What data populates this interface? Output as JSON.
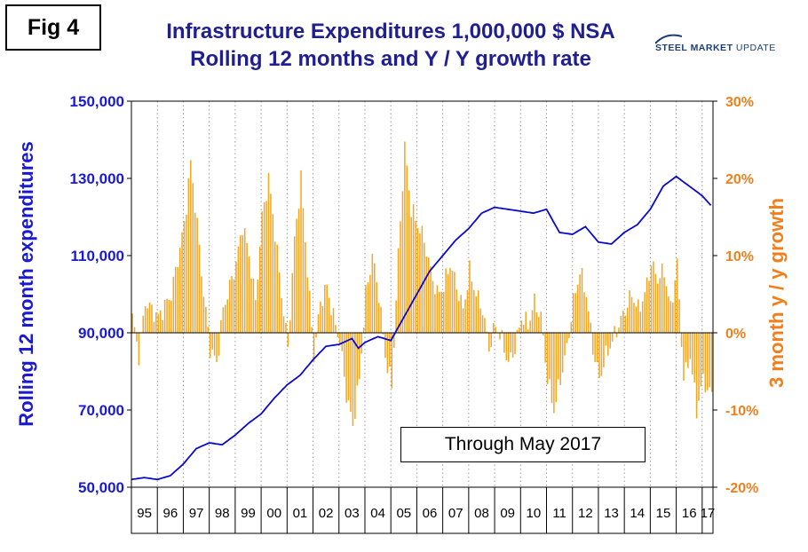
{
  "figure_label": "Fig 4",
  "title_line1": "Infrastructure Expenditures 1,000,000 $ NSA",
  "title_line2": "Rolling 12 months and Y / Y growth rate",
  "logo": {
    "word1": "STEEL MARKET",
    "word2": "UPDATE"
  },
  "annotation": "Through May 2017",
  "colors": {
    "line": "#0a0acc",
    "bars": "#f5a623",
    "left_axis": "#1a1ad0",
    "right_axis": "#f07f1d",
    "title": "#1f1f8f"
  },
  "chart_data": {
    "type": "line+bar",
    "left_axis": {
      "label": "Rolling 12 month expenditures",
      "ylim": [
        50000,
        150000
      ],
      "ticks": [
        "50,000",
        "70,000",
        "90,000",
        "110,000",
        "130,000",
        "150,000"
      ]
    },
    "right_axis": {
      "label": "3 month y / y growth",
      "ylim": [
        -20,
        30
      ],
      "ticks": [
        "-20%",
        "-10%",
        "0%",
        "10%",
        "20%",
        "30%"
      ]
    },
    "x_axis": {
      "categories": [
        "95",
        "96",
        "97",
        "98",
        "99",
        "00",
        "01",
        "02",
        "03",
        "04",
        "05",
        "06",
        "07",
        "08",
        "09",
        "10",
        "11",
        "12",
        "13",
        "14",
        "15",
        "16",
        "17"
      ],
      "start": "1995-01",
      "end": "2017-05"
    },
    "grid": "vertical dotted",
    "line_series": {
      "name": "Rolling 12 month expenditures",
      "points": [
        [
          1995.0,
          52000
        ],
        [
          1995.5,
          52500
        ],
        [
          1996.0,
          52000
        ],
        [
          1996.5,
          53000
        ],
        [
          1997.0,
          56000
        ],
        [
          1997.5,
          60000
        ],
        [
          1998.0,
          61500
        ],
        [
          1998.5,
          61000
        ],
        [
          1999.0,
          63500
        ],
        [
          1999.5,
          66500
        ],
        [
          2000.0,
          69000
        ],
        [
          2000.5,
          73000
        ],
        [
          2001.0,
          76500
        ],
        [
          2001.5,
          79000
        ],
        [
          2002.0,
          83000
        ],
        [
          2002.5,
          86500
        ],
        [
          2003.0,
          87000
        ],
        [
          2003.5,
          88500
        ],
        [
          2003.75,
          86000
        ],
        [
          2004.0,
          87500
        ],
        [
          2004.5,
          89000
        ],
        [
          2005.0,
          88000
        ],
        [
          2005.5,
          94000
        ],
        [
          2006.0,
          100000
        ],
        [
          2006.5,
          106000
        ],
        [
          2007.0,
          110000
        ],
        [
          2007.5,
          114000
        ],
        [
          2008.0,
          117000
        ],
        [
          2008.5,
          121000
        ],
        [
          2009.0,
          122500
        ],
        [
          2009.5,
          122000
        ],
        [
          2010.0,
          121500
        ],
        [
          2010.5,
          121000
        ],
        [
          2011.0,
          122000
        ],
        [
          2011.5,
          116000
        ],
        [
          2012.0,
          115500
        ],
        [
          2012.5,
          117500
        ],
        [
          2013.0,
          113500
        ],
        [
          2013.5,
          113000
        ],
        [
          2014.0,
          116000
        ],
        [
          2014.5,
          118000
        ],
        [
          2015.0,
          122000
        ],
        [
          2015.5,
          128000
        ],
        [
          2016.0,
          130500
        ],
        [
          2016.5,
          128000
        ],
        [
          2017.0,
          125500
        ],
        [
          2017.4,
          122500
        ]
      ]
    },
    "bar_series": {
      "name": "3 month y / y growth",
      "points": [
        [
          1995.0,
          2
        ],
        [
          1995.25,
          -3
        ],
        [
          1995.5,
          4
        ],
        [
          1996.0,
          2
        ],
        [
          1996.5,
          5
        ],
        [
          1997.0,
          14
        ],
        [
          1997.25,
          22
        ],
        [
          1997.5,
          14
        ],
        [
          1997.75,
          5
        ],
        [
          1998.0,
          -2
        ],
        [
          1998.25,
          -4
        ],
        [
          1998.5,
          3
        ],
        [
          1999.0,
          9
        ],
        [
          1999.25,
          14
        ],
        [
          1999.5,
          10
        ],
        [
          1999.75,
          4
        ],
        [
          2000.0,
          15
        ],
        [
          2000.25,
          20
        ],
        [
          2000.5,
          13
        ],
        [
          2000.75,
          5
        ],
        [
          2001.0,
          -2
        ],
        [
          2001.25,
          12
        ],
        [
          2001.5,
          20
        ],
        [
          2001.75,
          8
        ],
        [
          2002.0,
          -3
        ],
        [
          2002.25,
          4
        ],
        [
          2002.5,
          6
        ],
        [
          2002.75,
          2
        ],
        [
          2003.0,
          -1
        ],
        [
          2003.25,
          -8
        ],
        [
          2003.5,
          -12
        ],
        [
          2003.75,
          -6
        ],
        [
          2004.0,
          5
        ],
        [
          2004.25,
          10
        ],
        [
          2004.5,
          5
        ],
        [
          2004.75,
          -3
        ],
        [
          2005.0,
          -7
        ],
        [
          2005.25,
          10
        ],
        [
          2005.5,
          24
        ],
        [
          2005.75,
          16
        ],
        [
          2006.0,
          14
        ],
        [
          2006.25,
          12
        ],
        [
          2006.5,
          8
        ],
        [
          2006.75,
          5
        ],
        [
          2007.0,
          6
        ],
        [
          2007.25,
          9
        ],
        [
          2007.5,
          6
        ],
        [
          2007.75,
          3
        ],
        [
          2008.0,
          8
        ],
        [
          2008.25,
          5
        ],
        [
          2008.5,
          3
        ],
        [
          2008.75,
          -2
        ],
        [
          2009.0,
          1
        ],
        [
          2009.25,
          -1
        ],
        [
          2009.5,
          -4
        ],
        [
          2009.75,
          -2
        ],
        [
          2010.0,
          2
        ],
        [
          2010.25,
          1
        ],
        [
          2010.5,
          4
        ],
        [
          2010.75,
          2
        ],
        [
          2011.0,
          -6
        ],
        [
          2011.25,
          -10
        ],
        [
          2011.5,
          -6
        ],
        [
          2011.75,
          -2
        ],
        [
          2012.0,
          4
        ],
        [
          2012.25,
          8
        ],
        [
          2012.5,
          5
        ],
        [
          2012.75,
          -2
        ],
        [
          2013.0,
          -6
        ],
        [
          2013.25,
          -3
        ],
        [
          2013.5,
          -1
        ],
        [
          2013.75,
          1
        ],
        [
          2014.0,
          3
        ],
        [
          2014.25,
          5
        ],
        [
          2014.5,
          3
        ],
        [
          2014.75,
          5
        ],
        [
          2015.0,
          9
        ],
        [
          2015.25,
          7
        ],
        [
          2015.5,
          8
        ],
        [
          2015.75,
          3
        ],
        [
          2016.0,
          9
        ],
        [
          2016.25,
          -6
        ],
        [
          2016.5,
          -3
        ],
        [
          2016.75,
          -10
        ],
        [
          2017.0,
          -6
        ],
        [
          2017.25,
          -8
        ],
        [
          2017.4,
          -7
        ]
      ]
    }
  }
}
